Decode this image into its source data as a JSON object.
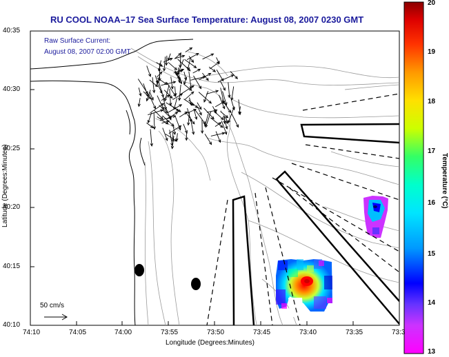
{
  "title": "RU COOL  NOAA–17  Sea Surface Temperature:  August 08, 2007 0230 GMT",
  "current_label": {
    "line1": "Raw Surface Current:",
    "line2": "August 08, 2007 02:00 GMT"
  },
  "scale_label": "50 cm/s",
  "x_axis": {
    "label": "Longitude (Degrees:Minutes)",
    "ticks": [
      "74:10",
      "74:05",
      "74:00",
      "73:55",
      "73:50",
      "73:45",
      "73:40",
      "73:35",
      "73:3"
    ]
  },
  "y_axis": {
    "label": "Latitude (Degrees:Minutes)",
    "ticks": [
      "40:35",
      "40:30",
      "40:25",
      "40:20",
      "40:15",
      "40:10"
    ]
  },
  "colorbar": {
    "label": "Temperature (°C)",
    "ticks": [
      "20",
      "19",
      "18",
      "17",
      "16",
      "15",
      "14",
      "13"
    ],
    "min": 13,
    "max": 20,
    "colors": [
      "#ff00ff",
      "#8a2be2",
      "#0000ff",
      "#00bfff",
      "#00ffff",
      "#00ff80",
      "#80ff00",
      "#ffff00",
      "#ffa500",
      "#ff4500",
      "#ff0000",
      "#8b0000"
    ]
  },
  "map": {
    "lon_range": [
      "74:10",
      "73:3"
    ],
    "lat_range": [
      "40:10",
      "40:35"
    ],
    "land_color": "#ffffff",
    "coast_color": "#000000",
    "bathymetry_color": "#999999",
    "vector_color": "#000000"
  }
}
